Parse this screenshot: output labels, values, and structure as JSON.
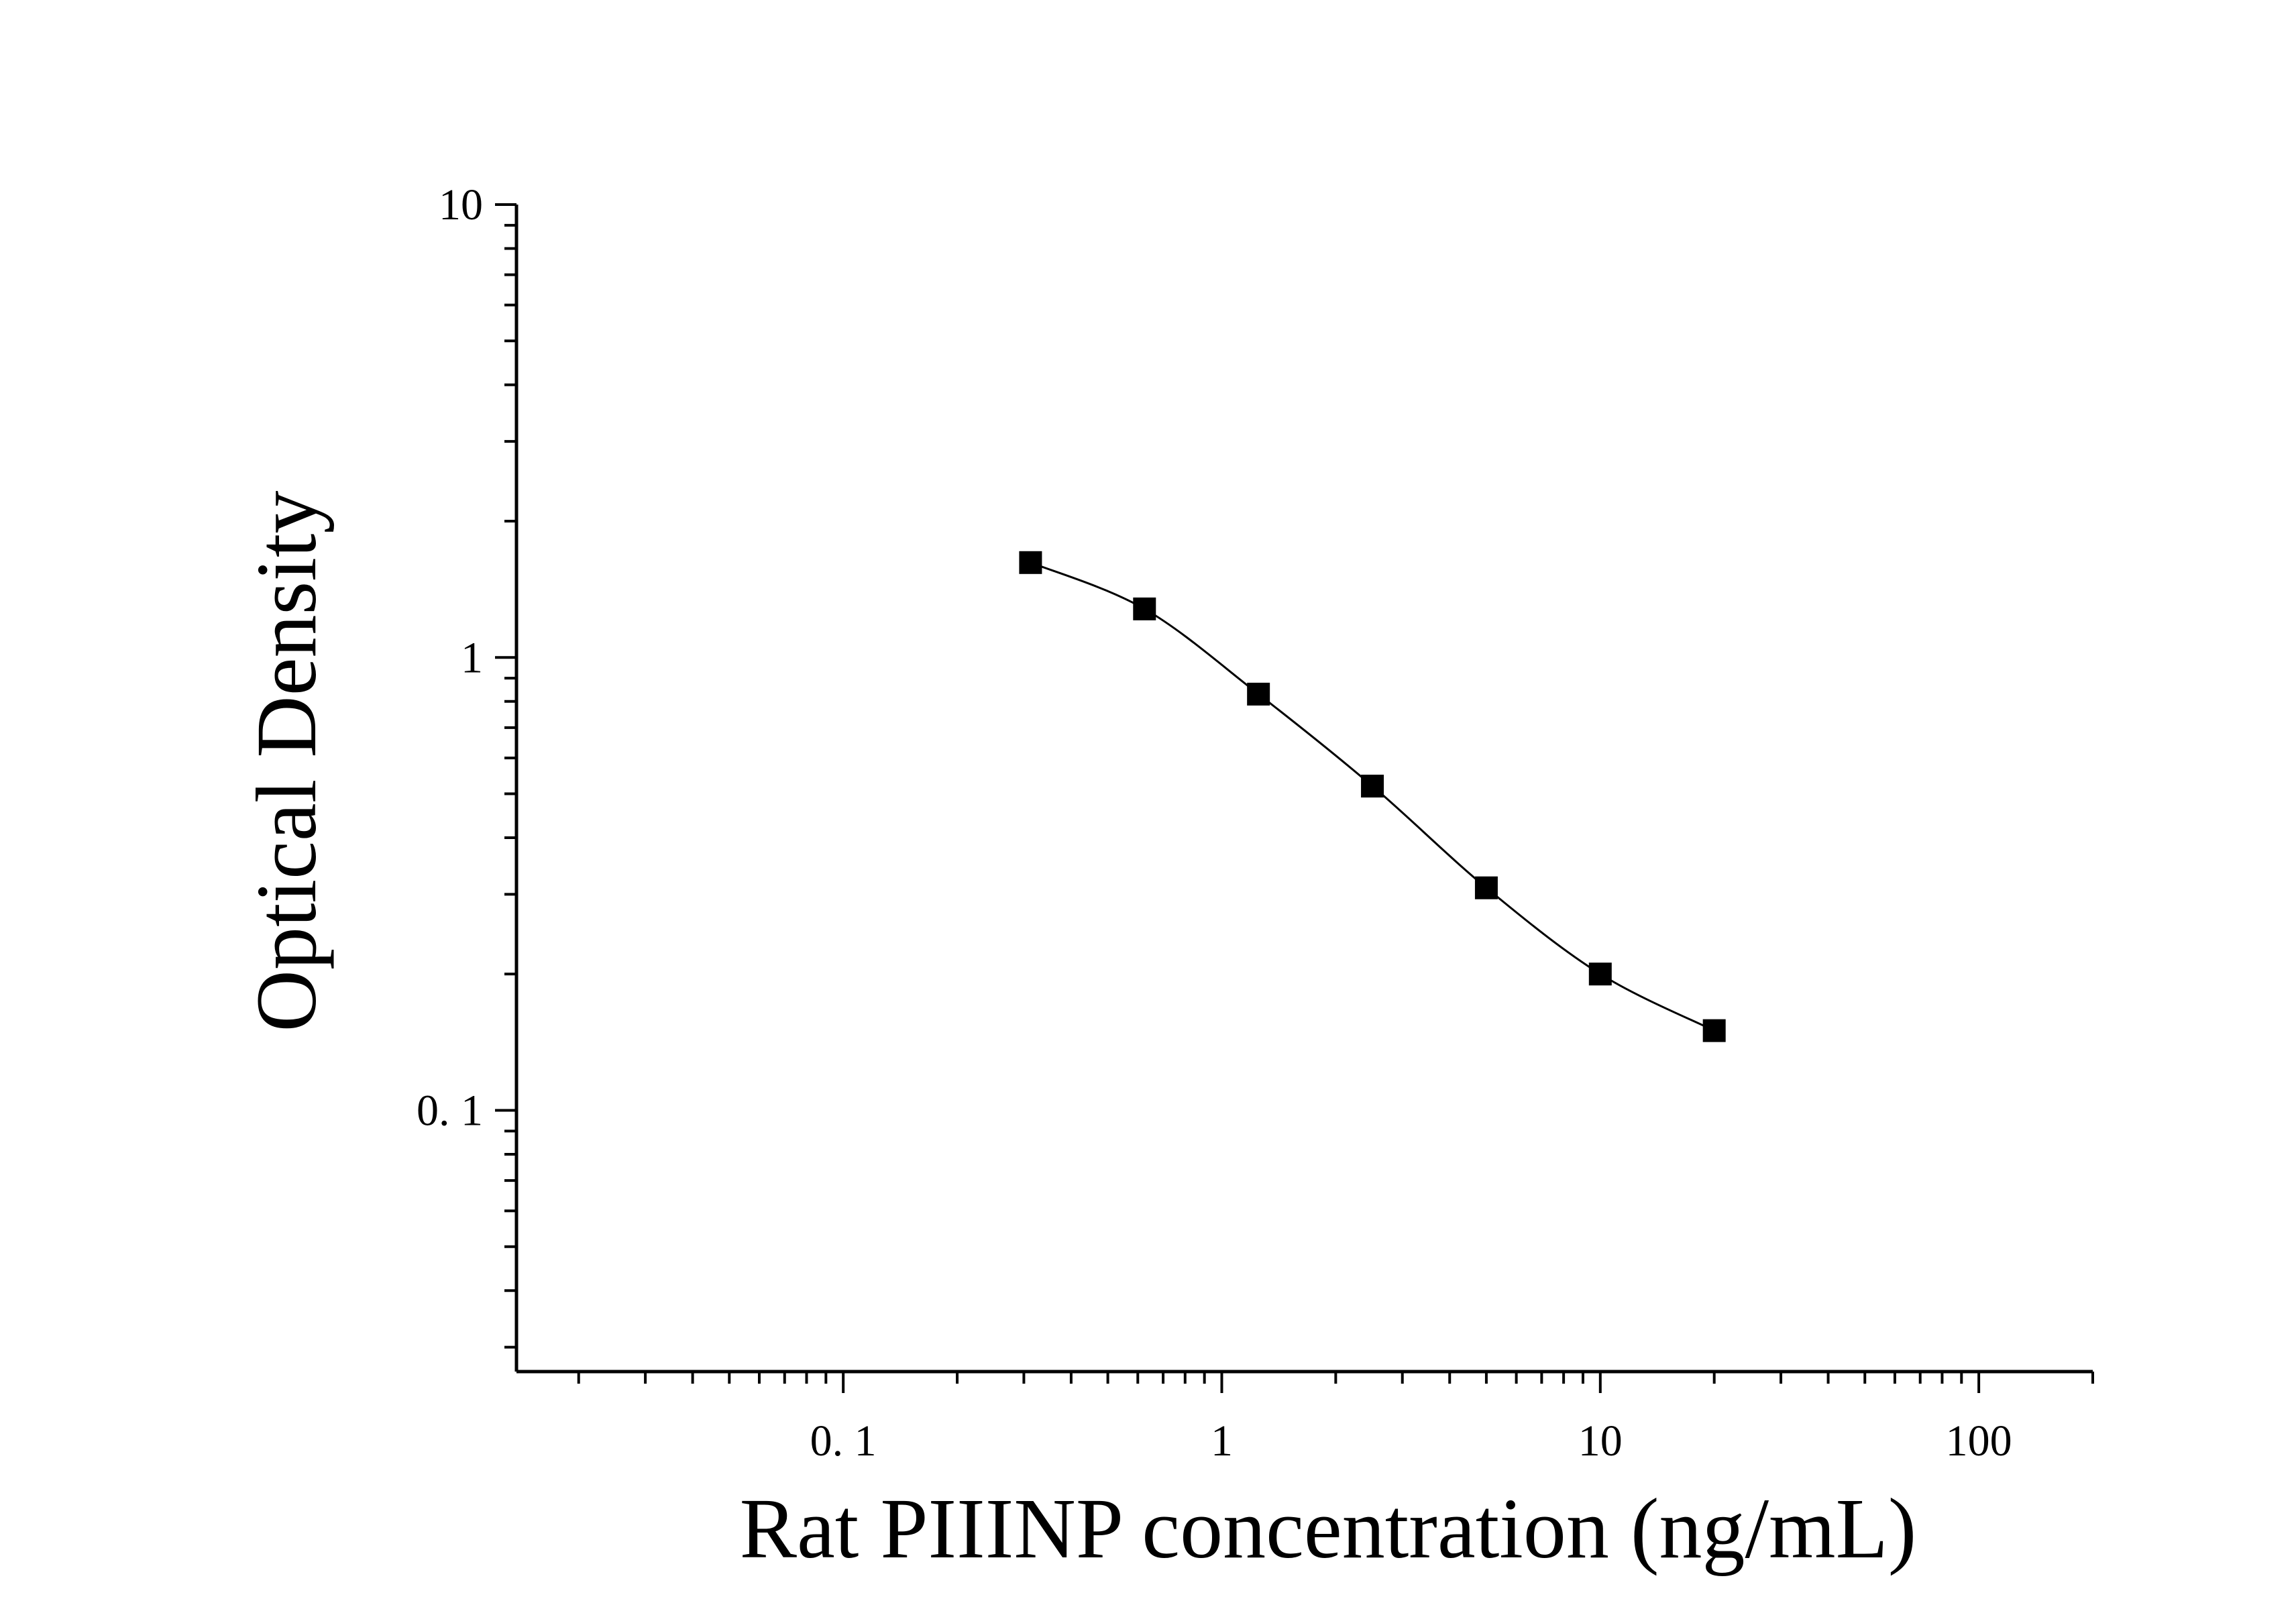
{
  "chart_data": {
    "type": "scatter",
    "title": "",
    "xlabel": "Rat PIIINP concentration (ng/mL)",
    "ylabel": "Optical Density",
    "x_scale": "log",
    "y_scale": "log",
    "xlim": [
      0.0137,
      200
    ],
    "ylim": [
      0.0265,
      10
    ],
    "x_ticks": [
      0.1,
      1,
      10,
      100
    ],
    "x_tick_labels": [
      "0. 1",
      "1",
      "10",
      "100"
    ],
    "y_ticks": [
      0.1,
      1,
      10
    ],
    "y_tick_labels": [
      "0. 1",
      "1",
      "10"
    ],
    "grid": false,
    "legend": false,
    "series": [
      {
        "marker": "square",
        "line": "fitted curve",
        "color": "#000000",
        "points": [
          {
            "x": 0.3125,
            "y": 1.62
          },
          {
            "x": 0.625,
            "y": 1.28
          },
          {
            "x": 1.25,
            "y": 0.83
          },
          {
            "x": 2.5,
            "y": 0.52
          },
          {
            "x": 5,
            "y": 0.31
          },
          {
            "x": 10,
            "y": 0.2
          },
          {
            "x": 20,
            "y": 0.15
          }
        ]
      }
    ]
  }
}
